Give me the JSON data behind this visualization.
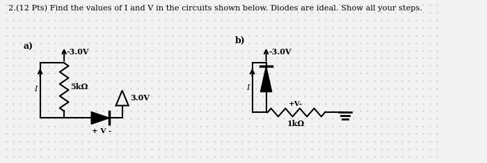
{
  "title": "2.(12 Pts) Find the values of I and V in the circuits shown below. Diodes are ideal. Show all your steps.",
  "bg_color": "#f2f2f2",
  "label_a": "a)",
  "label_b": "b)",
  "circuit_a": {
    "voltage_top_label": "↑-3.0V",
    "resistor_label": "5kΩ",
    "voltage_src2_label": "△3.0V",
    "current_label": "I",
    "v_label": "+ V -"
  },
  "circuit_b": {
    "voltage_top_label": "↑-3.0V",
    "resistor_label": "1kΩ",
    "current_label": "I",
    "v_label": "+V-"
  },
  "dot_color": "#bbbbbb",
  "line_color": "#000000",
  "text_color": "#000000",
  "font_size": 8.0,
  "title_font_size": 8.2
}
